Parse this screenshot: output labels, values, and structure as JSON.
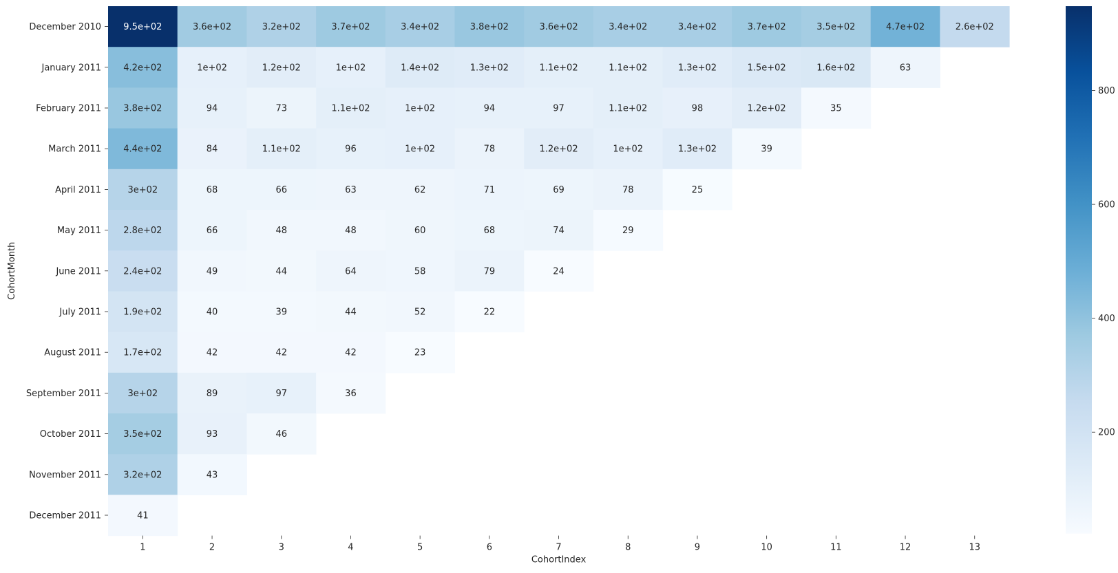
{
  "chart_data": {
    "type": "heatmap",
    "title": "",
    "xlabel": "CohortIndex",
    "ylabel": "CohortMonth",
    "x": [
      "1",
      "2",
      "3",
      "4",
      "5",
      "6",
      "7",
      "8",
      "9",
      "10",
      "11",
      "12",
      "13"
    ],
    "y": [
      "December 2010",
      "January 2011",
      "February 2011",
      "March 2011",
      "April 2011",
      "May 2011",
      "June 2011",
      "July 2011",
      "August 2011",
      "September 2011",
      "October 2011",
      "November 2011",
      "December 2011"
    ],
    "values": [
      [
        948,
        360,
        320,
        370,
        340,
        380,
        360,
        340,
        340,
        370,
        350,
        470,
        260
      ],
      [
        420,
        100,
        120,
        100,
        140,
        130,
        110,
        110,
        130,
        150,
        160,
        63,
        null
      ],
      [
        380,
        94,
        73,
        110,
        100,
        94,
        97,
        110,
        98,
        120,
        35,
        null,
        null
      ],
      [
        440,
        84,
        110,
        96,
        100,
        78,
        120,
        100,
        130,
        39,
        null,
        null,
        null
      ],
      [
        300,
        68,
        66,
        63,
        62,
        71,
        69,
        78,
        25,
        null,
        null,
        null,
        null
      ],
      [
        280,
        66,
        48,
        48,
        60,
        68,
        74,
        29,
        null,
        null,
        null,
        null,
        null
      ],
      [
        240,
        49,
        44,
        64,
        58,
        79,
        24,
        null,
        null,
        null,
        null,
        null,
        null
      ],
      [
        190,
        40,
        39,
        44,
        52,
        22,
        null,
        null,
        null,
        null,
        null,
        null,
        null
      ],
      [
        170,
        42,
        42,
        42,
        23,
        null,
        null,
        null,
        null,
        null,
        null,
        null,
        null
      ],
      [
        300,
        89,
        97,
        36,
        null,
        null,
        null,
        null,
        null,
        null,
        null,
        null,
        null
      ],
      [
        350,
        93,
        46,
        null,
        null,
        null,
        null,
        null,
        null,
        null,
        null,
        null,
        null
      ],
      [
        320,
        43,
        null,
        null,
        null,
        null,
        null,
        null,
        null,
        null,
        null,
        null,
        null
      ],
      [
        41,
        null,
        null,
        null,
        null,
        null,
        null,
        null,
        null,
        null,
        null,
        null,
        null
      ]
    ],
    "annotations": [
      [
        "9.5e+02",
        "3.6e+02",
        "3.2e+02",
        "3.7e+02",
        "3.4e+02",
        "3.8e+02",
        "3.6e+02",
        "3.4e+02",
        "3.4e+02",
        "3.7e+02",
        "3.5e+02",
        "4.7e+02",
        "2.6e+02"
      ],
      [
        "4.2e+02",
        "1e+02",
        "1.2e+02",
        "1e+02",
        "1.4e+02",
        "1.3e+02",
        "1.1e+02",
        "1.1e+02",
        "1.3e+02",
        "1.5e+02",
        "1.6e+02",
        "63",
        ""
      ],
      [
        "3.8e+02",
        "94",
        "73",
        "1.1e+02",
        "1e+02",
        "94",
        "97",
        "1.1e+02",
        "98",
        "1.2e+02",
        "35",
        "",
        ""
      ],
      [
        "4.4e+02",
        "84",
        "1.1e+02",
        "96",
        "1e+02",
        "78",
        "1.2e+02",
        "1e+02",
        "1.3e+02",
        "39",
        "",
        "",
        ""
      ],
      [
        "3e+02",
        "68",
        "66",
        "63",
        "62",
        "71",
        "69",
        "78",
        "25",
        "",
        "",
        "",
        ""
      ],
      [
        "2.8e+02",
        "66",
        "48",
        "48",
        "60",
        "68",
        "74",
        "29",
        "",
        "",
        "",
        "",
        ""
      ],
      [
        "2.4e+02",
        "49",
        "44",
        "64",
        "58",
        "79",
        "24",
        "",
        "",
        "",
        "",
        "",
        ""
      ],
      [
        "1.9e+02",
        "40",
        "39",
        "44",
        "52",
        "22",
        "",
        "",
        "",
        "",
        "",
        "",
        ""
      ],
      [
        "1.7e+02",
        "42",
        "42",
        "42",
        "23",
        "",
        "",
        "",
        "",
        "",
        "",
        "",
        ""
      ],
      [
        "3e+02",
        "89",
        "97",
        "36",
        "",
        "",
        "",
        "",
        "",
        "",
        "",
        "",
        ""
      ],
      [
        "3.5e+02",
        "93",
        "46",
        "",
        "",
        "",
        "",
        "",
        "",
        "",
        "",
        "",
        ""
      ],
      [
        "3.2e+02",
        "43",
        "",
        "",
        "",
        "",
        "",
        "",
        "",
        "",
        "",
        "",
        ""
      ],
      [
        "41",
        "",
        "",
        "",
        "",
        "",
        "",
        "",
        "",
        "",
        "",
        "",
        ""
      ]
    ],
    "colorbar": {
      "range": [
        22,
        948
      ],
      "ticks": [
        200,
        400,
        600,
        800
      ],
      "tick_labels": [
        "200",
        "400",
        "600",
        "800"
      ],
      "colormap": "Blues",
      "stops": [
        "#f7fbff",
        "#deebf7",
        "#c6dbef",
        "#9ecae1",
        "#6baed6",
        "#4292c6",
        "#2171b5",
        "#08519c",
        "#08306b"
      ]
    },
    "grid": false,
    "legend": "colorbar-right"
  }
}
